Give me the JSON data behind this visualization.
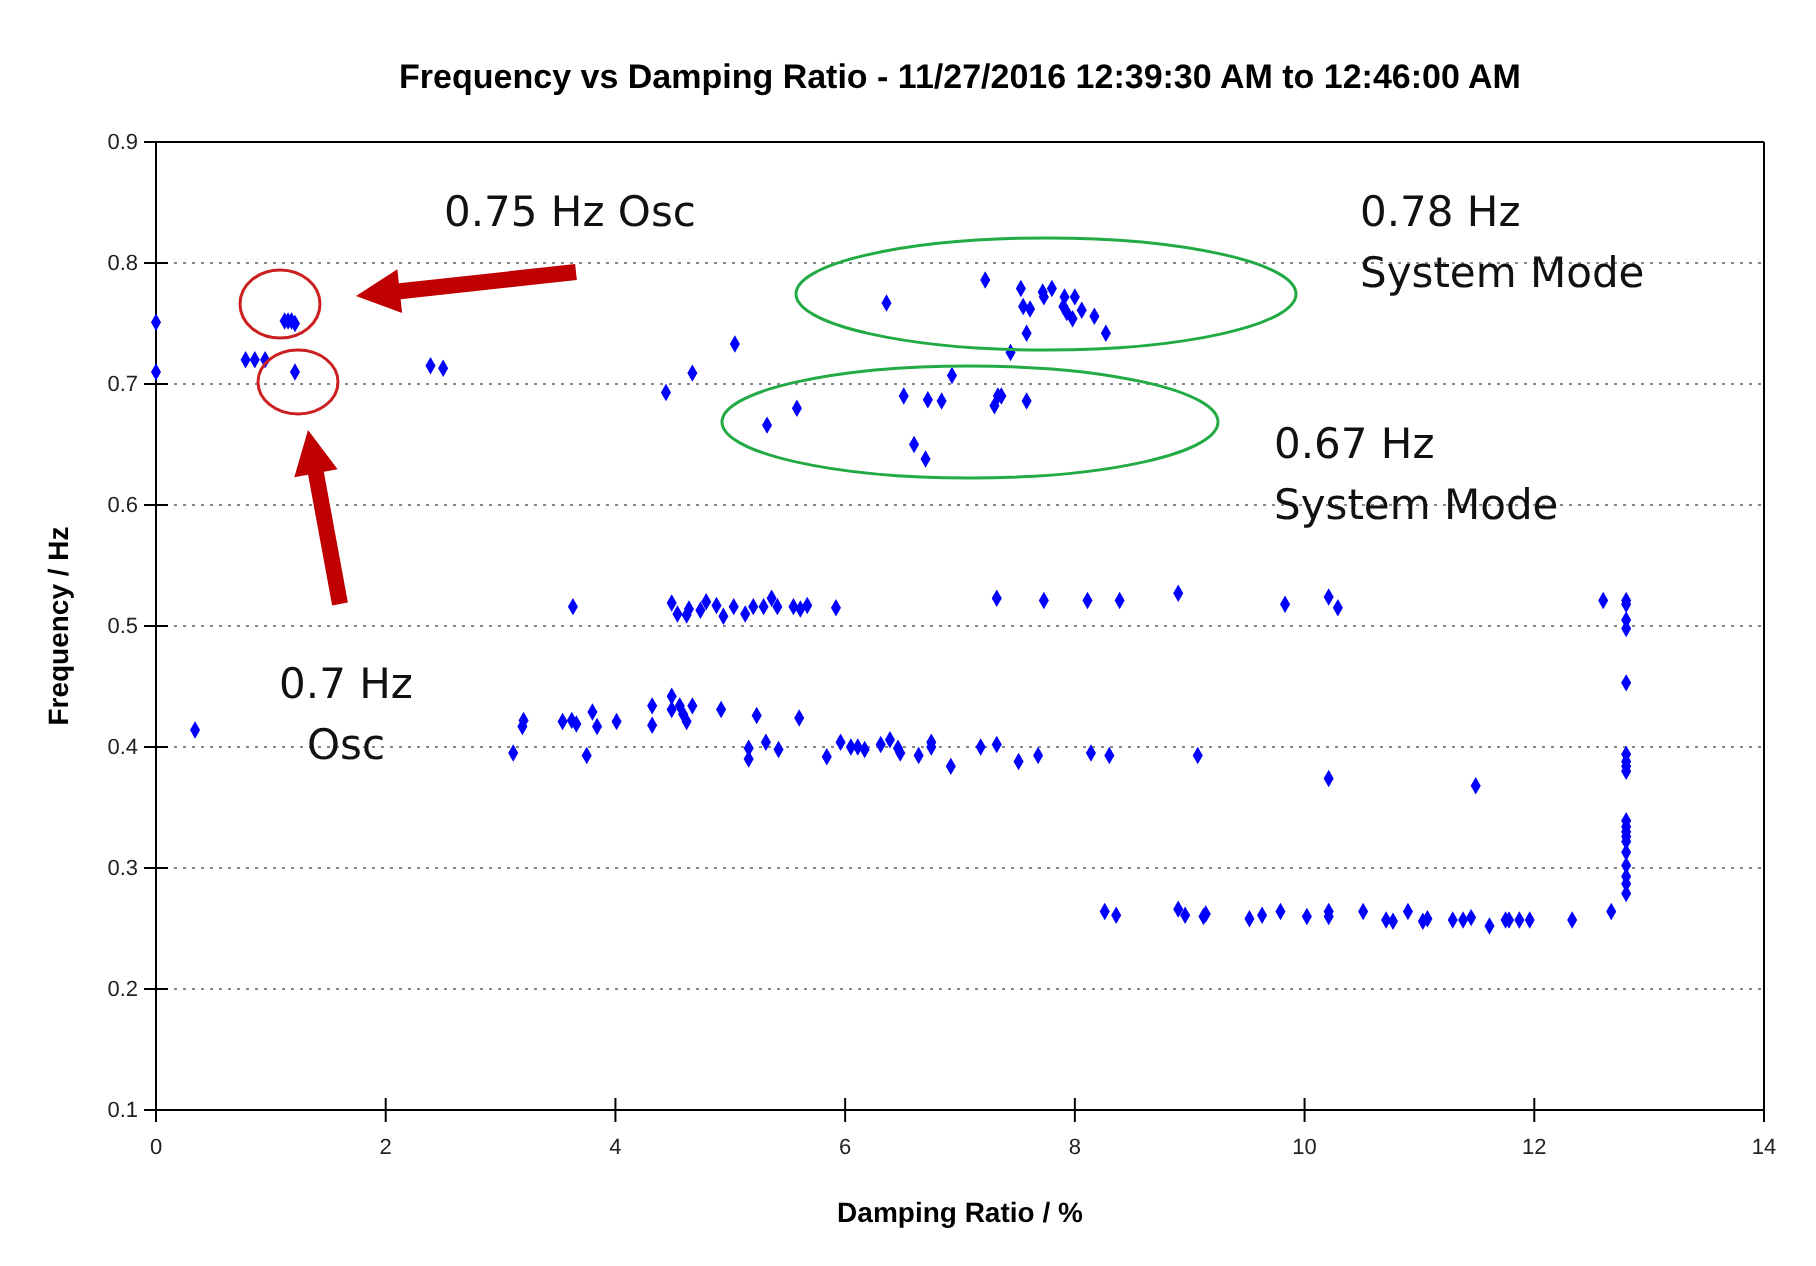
{
  "chart_data": {
    "type": "scatter",
    "title": "Frequency vs Damping Ratio - 11/27/2016 12:39:30 AM to 12:46:00 AM",
    "xlabel": "Damping Ratio / %",
    "ylabel": "Frequency / Hz",
    "xlim": [
      0,
      14
    ],
    "xticks": [
      0,
      2,
      4,
      6,
      8,
      10,
      12,
      14
    ],
    "ylim": [
      0.1,
      0.9
    ],
    "yticks": [
      0.1,
      0.2,
      0.3,
      0.4,
      0.5,
      0.6,
      0.7,
      0.8,
      0.9
    ],
    "grid": "y",
    "marker": "diamond",
    "annotations": [
      "0.75 Hz Osc",
      "0.7 Hz\nOsc",
      "0.78 Hz\nSystem Mode",
      "0.67 Hz\nSystem Mode"
    ],
    "series": [
      {
        "color": "#0000ff",
        "x": [
          0,
          0,
          0.78,
          0.86,
          0.95,
          1.12,
          1.15,
          1.18,
          1.21,
          1.21,
          2.39,
          2.5,
          4.44,
          4.67,
          5.04,
          5.32,
          5.58,
          6.36,
          6.51,
          6.6,
          6.7,
          6.72,
          6.84,
          6.93,
          7.22,
          7.3,
          7.33,
          7.36,
          7.44,
          7.53,
          7.55,
          7.58,
          7.58,
          7.61,
          7.72,
          7.73,
          7.8,
          7.9,
          7.91,
          7.93,
          7.98,
          8.0,
          8.06,
          8.17,
          8.27,
          3.63,
          4.49,
          4.54,
          4.62,
          4.64,
          4.74,
          4.79,
          4.88,
          4.94,
          5.03,
          5.13,
          5.2,
          5.29,
          5.36,
          5.41,
          5.55,
          5.61,
          5.67,
          5.92,
          7.32,
          7.73,
          8.11,
          8.39,
          8.9,
          9.83,
          10.21,
          10.29,
          12.6,
          12.8,
          12.8,
          12.8,
          12.8,
          12.8,
          12.8,
          12.8,
          12.8,
          12.8,
          12.8,
          12.8,
          12.8,
          12.8,
          12.8,
          12.8,
          12.8,
          12.8,
          12.8,
          12.8,
          0.34,
          3.11,
          3.19,
          3.2,
          3.54,
          3.62,
          3.66,
          3.75,
          3.8,
          3.84,
          4.01,
          4.32,
          4.32,
          4.49,
          4.49,
          4.56,
          4.59,
          4.62,
          4.67,
          4.92,
          5.23,
          5.16,
          5.16,
          5.31,
          5.42,
          5.6,
          5.84,
          5.96,
          6.05,
          6.11,
          6.17,
          6.31,
          6.39,
          6.46,
          6.48,
          6.64,
          6.75,
          6.75,
          6.92,
          7.18,
          7.32,
          7.51,
          7.68,
          8.14,
          8.3,
          9.07,
          10.21,
          11.49,
          8.26,
          8.36,
          8.9,
          8.96,
          9.12,
          9.14,
          9.52,
          9.63,
          9.79,
          10.02,
          10.21,
          10.21,
          10.51,
          10.71,
          10.77,
          10.9,
          11.03,
          11.07,
          11.29,
          11.38,
          11.45,
          11.61,
          11.75,
          11.78,
          11.87,
          11.96,
          12.33,
          12.67
        ],
        "values": [
          0.751,
          0.71,
          0.72,
          0.72,
          0.72,
          0.752,
          0.752,
          0.752,
          0.75,
          0.71,
          0.715,
          0.713,
          0.693,
          0.709,
          0.733,
          0.666,
          0.68,
          0.767,
          0.69,
          0.65,
          0.638,
          0.687,
          0.686,
          0.707,
          0.786,
          0.682,
          0.69,
          0.69,
          0.726,
          0.779,
          0.764,
          0.742,
          0.686,
          0.762,
          0.776,
          0.772,
          0.779,
          0.764,
          0.772,
          0.759,
          0.754,
          0.772,
          0.761,
          0.756,
          0.742,
          0.516,
          0.519,
          0.51,
          0.509,
          0.514,
          0.513,
          0.52,
          0.517,
          0.508,
          0.516,
          0.51,
          0.516,
          0.516,
          0.523,
          0.516,
          0.516,
          0.514,
          0.517,
          0.515,
          0.523,
          0.521,
          0.521,
          0.521,
          0.527,
          0.518,
          0.524,
          0.515,
          0.521,
          0.521,
          0.518,
          0.505,
          0.498,
          0.453,
          0.394,
          0.388,
          0.384,
          0.38,
          0.339,
          0.334,
          0.33,
          0.326,
          0.322,
          0.313,
          0.302,
          0.293,
          0.287,
          0.279,
          0.414,
          0.395,
          0.417,
          0.422,
          0.421,
          0.422,
          0.419,
          0.393,
          0.429,
          0.417,
          0.421,
          0.434,
          0.418,
          0.442,
          0.431,
          0.434,
          0.427,
          0.421,
          0.434,
          0.431,
          0.426,
          0.399,
          0.39,
          0.404,
          0.398,
          0.424,
          0.392,
          0.404,
          0.4,
          0.4,
          0.398,
          0.402,
          0.406,
          0.399,
          0.395,
          0.393,
          0.404,
          0.4,
          0.384,
          0.4,
          0.402,
          0.388,
          0.393,
          0.395,
          0.393,
          0.393,
          0.374,
          0.368,
          0.264,
          0.261,
          0.266,
          0.261,
          0.26,
          0.262,
          0.258,
          0.261,
          0.264,
          0.26,
          0.26,
          0.264,
          0.264,
          0.257,
          0.256,
          0.264,
          0.256,
          0.258,
          0.257,
          0.257,
          0.259,
          0.252,
          0.257,
          0.257,
          0.257,
          0.257,
          0.257,
          0.264
        ]
      }
    ]
  }
}
